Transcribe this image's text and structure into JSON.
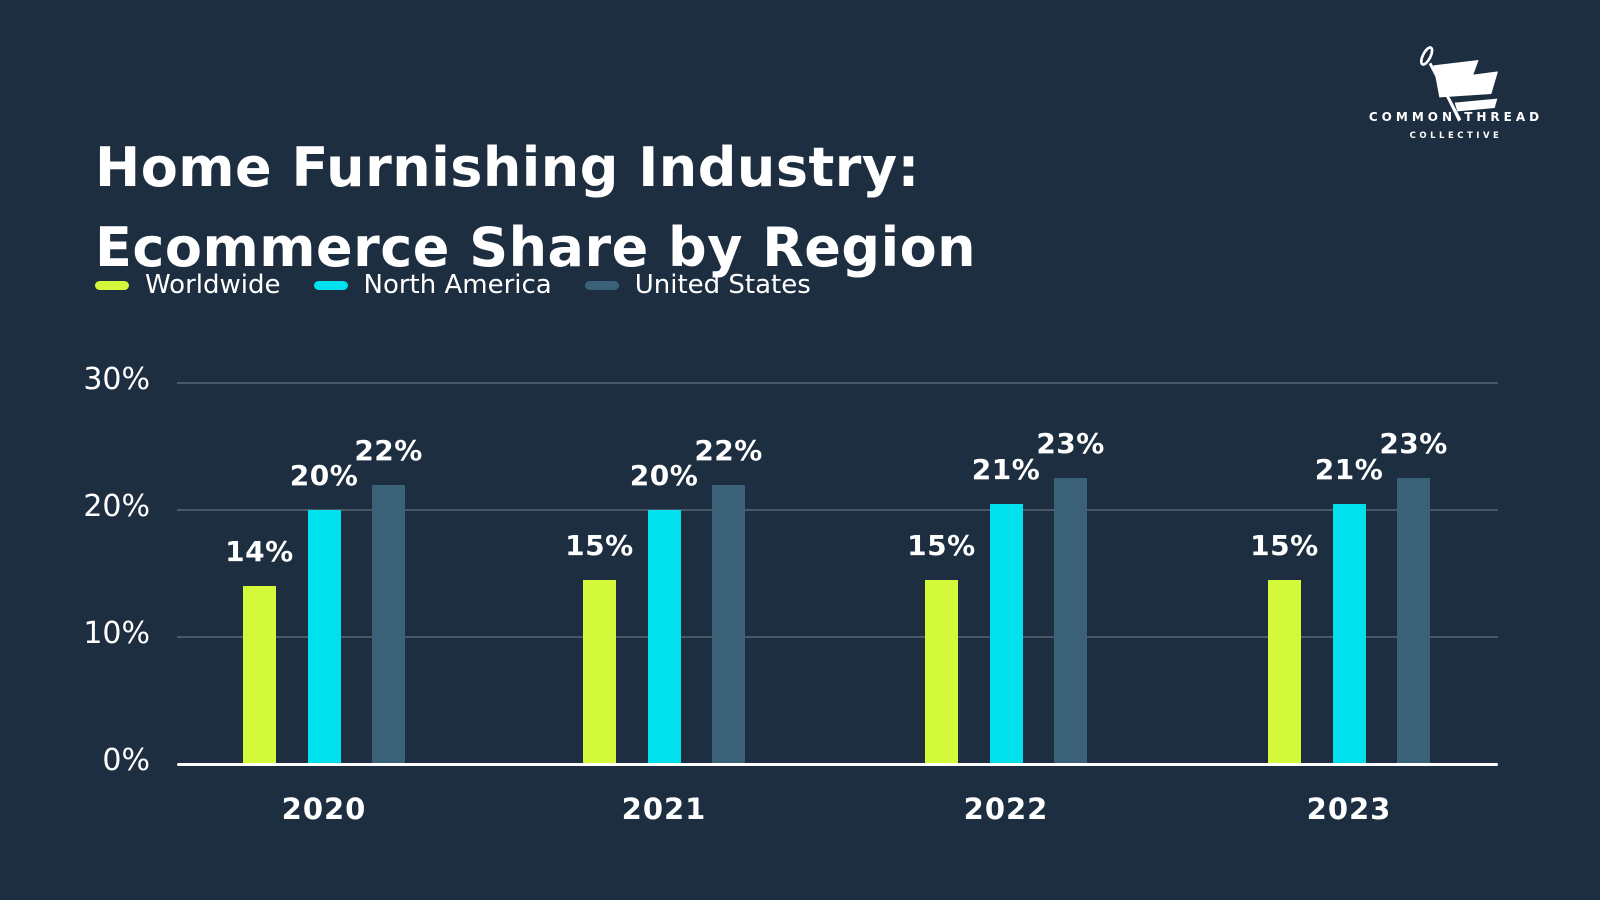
{
  "page": {
    "background": "#1d2e40"
  },
  "header": {
    "title_line1": "Home Furnishing Industry:",
    "title_line2": "Ecommerce Share by Region"
  },
  "logo": {
    "icon": "needle-flag-icon",
    "line1": "COMMON THREAD",
    "line2": "COLLECTIVE"
  },
  "legend": {
    "items": [
      {
        "label": "Worldwide",
        "color": "#d4f93b"
      },
      {
        "label": "North America",
        "color": "#00e0ed"
      },
      {
        "label": "United States",
        "color": "#3a6177"
      }
    ]
  },
  "chart_data": {
    "type": "bar",
    "title": "Home Furnishing Industry: Ecommerce Share by Region",
    "categories": [
      "2020",
      "2021",
      "2022",
      "2023"
    ],
    "series": [
      {
        "name": "Worldwide",
        "color": "#d4f93b",
        "values": [
          14,
          15,
          15,
          15
        ],
        "labels": [
          "14%",
          "15%",
          "15%",
          "15%"
        ],
        "bar_heights_pct": [
          14,
          14.5,
          14.5,
          14.5
        ]
      },
      {
        "name": "North America",
        "color": "#00e0ed",
        "values": [
          20,
          20,
          21,
          21
        ],
        "labels": [
          "20%",
          "20%",
          "21%",
          "21%"
        ],
        "bar_heights_pct": [
          20,
          20,
          20.5,
          20.5
        ]
      },
      {
        "name": "United States",
        "color": "#3a6177",
        "values": [
          22,
          22,
          23,
          23
        ],
        "labels": [
          "22%",
          "22%",
          "23%",
          "23%"
        ],
        "bar_heights_pct": [
          22,
          22,
          22.5,
          22.5
        ]
      }
    ],
    "xlabel": "",
    "ylabel": "",
    "ylim": [
      0,
      30
    ],
    "yticks": [
      "30%",
      "20%",
      "10%",
      "0%"
    ],
    "ytick_values": [
      30,
      20,
      10,
      0
    ],
    "grid": "horizontal",
    "legend_position": "top-left"
  }
}
